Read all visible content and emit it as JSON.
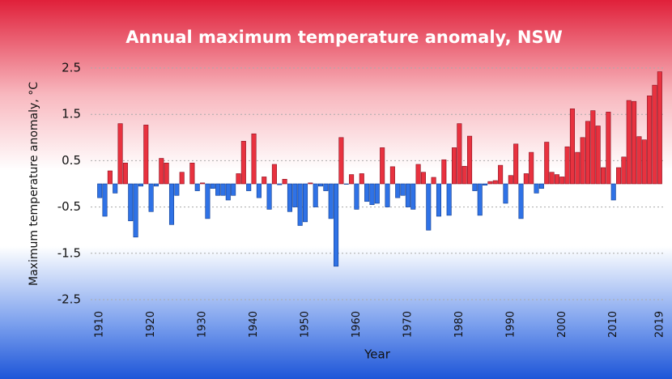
{
  "chart_data": {
    "type": "bar",
    "title": "Annual maximum temperature anomaly, NSW",
    "y_label": "Maximum temperature anomaly, °C",
    "x_label": "Year",
    "x": [
      1910,
      1911,
      1912,
      1913,
      1914,
      1915,
      1916,
      1917,
      1918,
      1919,
      1920,
      1921,
      1922,
      1923,
      1924,
      1925,
      1926,
      1927,
      1928,
      1929,
      1930,
      1931,
      1932,
      1933,
      1934,
      1935,
      1936,
      1937,
      1938,
      1939,
      1940,
      1941,
      1942,
      1943,
      1944,
      1945,
      1946,
      1947,
      1948,
      1949,
      1950,
      1951,
      1952,
      1953,
      1954,
      1955,
      1956,
      1957,
      1958,
      1959,
      1960,
      1961,
      1962,
      1963,
      1964,
      1965,
      1966,
      1967,
      1968,
      1969,
      1970,
      1971,
      1972,
      1973,
      1974,
      1975,
      1976,
      1977,
      1978,
      1979,
      1980,
      1981,
      1982,
      1983,
      1984,
      1985,
      1986,
      1987,
      1988,
      1989,
      1990,
      1991,
      1992,
      1993,
      1994,
      1995,
      1996,
      1997,
      1998,
      1999,
      2000,
      2001,
      2002,
      2003,
      2004,
      2005,
      2006,
      2007,
      2008,
      2009,
      2010,
      2011,
      2012,
      2013,
      2014,
      2015,
      2016,
      2017,
      2018,
      2019
    ],
    "values": [
      -0.3,
      -0.7,
      0.28,
      -0.2,
      1.3,
      0.45,
      -0.8,
      -1.15,
      -0.05,
      1.27,
      -0.6,
      -0.05,
      0.55,
      0.45,
      -0.88,
      -0.25,
      0.25,
      0.0,
      0.45,
      -0.15,
      0.02,
      -0.75,
      -0.1,
      -0.25,
      -0.25,
      -0.35,
      -0.25,
      0.22,
      0.92,
      -0.15,
      1.08,
      -0.3,
      0.15,
      -0.55,
      0.42,
      -0.02,
      0.1,
      -0.6,
      -0.5,
      -0.9,
      -0.82,
      0.02,
      -0.5,
      -0.05,
      -0.15,
      -0.75,
      -1.78,
      1.0,
      -0.01,
      0.2,
      -0.55,
      0.22,
      -0.38,
      -0.45,
      -0.42,
      0.78,
      -0.5,
      0.37,
      -0.3,
      -0.25,
      -0.5,
      -0.55,
      0.42,
      0.25,
      -1.0,
      0.14,
      -0.7,
      0.52,
      -0.68,
      0.78,
      1.3,
      0.38,
      1.03,
      -0.15,
      -0.68,
      -0.03,
      0.05,
      0.07,
      0.4,
      -0.42,
      0.18,
      0.86,
      -0.75,
      0.22,
      0.68,
      -0.2,
      -0.1,
      0.9,
      0.25,
      0.2,
      0.15,
      0.8,
      1.62,
      0.68,
      1.0,
      1.35,
      1.58,
      1.25,
      0.35,
      1.55,
      -0.35,
      0.35,
      0.58,
      1.8,
      1.78,
      1.02,
      0.95,
      1.9,
      2.13,
      2.42
    ],
    "colors": {
      "positive": "#e8323f",
      "negative": "#2f72e6"
    },
    "xlim": [
      1909.5,
      2019.5
    ],
    "xticks": [
      1910,
      1920,
      1930,
      1940,
      1950,
      1960,
      1970,
      1980,
      1990,
      2000,
      2010,
      2019
    ],
    "ylim": [
      -2.5,
      2.5
    ],
    "yticks": [
      2.5,
      1.5,
      0.5,
      -0.5,
      -1.5,
      -2.5
    ],
    "grid": true
  }
}
